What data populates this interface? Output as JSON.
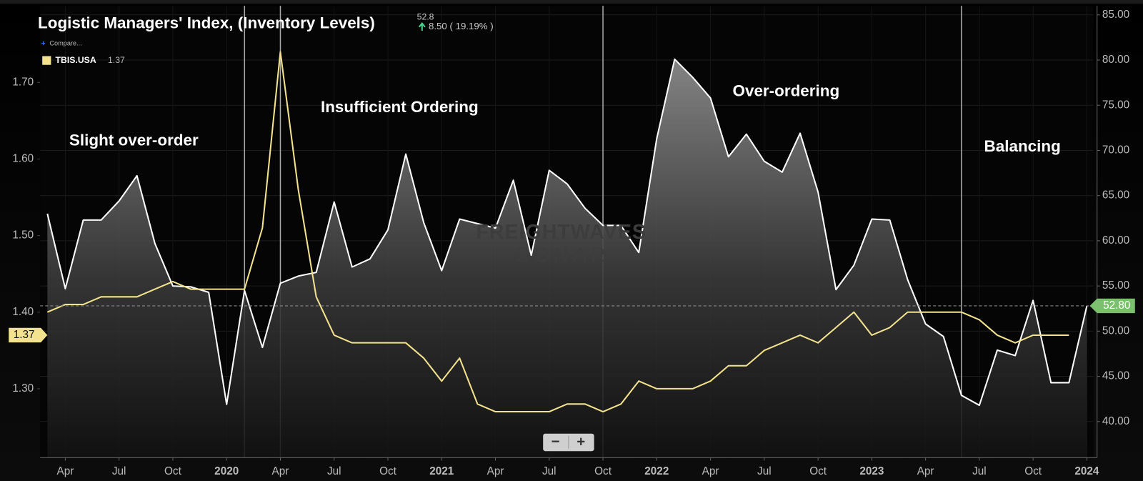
{
  "chart_data": {
    "type": "line",
    "title": "Logistic Managers' Index, (Inventory Levels)",
    "header_value": "52.8",
    "header_change": "8.50 ( 19.19% )",
    "compare": "Compare...",
    "annotations": [
      "Slight over-order",
      "Insufficient Ordering",
      "Over-ordering",
      "Balancing"
    ],
    "watermark": [
      "FREIGHTWAVES",
      "SONAR"
    ],
    "controls": [
      "−",
      "+"
    ],
    "x": [
      "2019-03",
      "2019-04",
      "2019-05",
      "2019-06",
      "2019-07",
      "2019-08",
      "2019-09",
      "2019-10",
      "2019-11",
      "2019-12",
      "2020-01",
      "2020-02",
      "2020-03",
      "2020-04",
      "2020-05",
      "2020-06",
      "2020-07",
      "2020-08",
      "2020-09",
      "2020-10",
      "2020-11",
      "2020-12",
      "2021-01",
      "2021-02",
      "2021-03",
      "2021-04",
      "2021-05",
      "2021-06",
      "2021-07",
      "2021-08",
      "2021-09",
      "2021-10",
      "2021-11",
      "2021-12",
      "2022-01",
      "2022-02",
      "2022-03",
      "2022-04",
      "2022-05",
      "2022-06",
      "2022-07",
      "2022-08",
      "2022-09",
      "2022-10",
      "2022-11",
      "2022-12",
      "2023-01",
      "2023-02",
      "2023-03",
      "2023-04",
      "2023-05",
      "2023-06",
      "2023-07",
      "2023-08",
      "2023-09",
      "2023-10",
      "2023-11",
      "2023-12",
      "2024-01"
    ],
    "xlim": [
      "2019-03",
      "2024-01"
    ],
    "xticks": [
      {
        "value": "2019-04",
        "label": "Apr"
      },
      {
        "value": "2019-07",
        "label": "Jul"
      },
      {
        "value": "2019-10",
        "label": "Oct"
      },
      {
        "value": "2020-01",
        "label": "2020"
      },
      {
        "value": "2020-04",
        "label": "Apr"
      },
      {
        "value": "2020-07",
        "label": "Jul"
      },
      {
        "value": "2020-10",
        "label": "Oct"
      },
      {
        "value": "2021-01",
        "label": "2021"
      },
      {
        "value": "2021-04",
        "label": "Apr"
      },
      {
        "value": "2021-07",
        "label": "Jul"
      },
      {
        "value": "2021-10",
        "label": "Oct"
      },
      {
        "value": "2022-01",
        "label": "2022"
      },
      {
        "value": "2022-04",
        "label": "Apr"
      },
      {
        "value": "2022-07",
        "label": "Jul"
      },
      {
        "value": "2022-10",
        "label": "Oct"
      },
      {
        "value": "2023-01",
        "label": "2023"
      },
      {
        "value": "2023-04",
        "label": "Apr"
      },
      {
        "value": "2023-07",
        "label": "Jul"
      },
      {
        "value": "2023-10",
        "label": "Oct"
      },
      {
        "value": "2024-01",
        "label": "2024"
      }
    ],
    "vlines": [
      "2020-02",
      "2020-04",
      "2021-10",
      "2023-06"
    ],
    "ylim": [
      1.21,
      1.8
    ],
    "yticks": [
      {
        "value": 1.3,
        "label": "1.30"
      },
      {
        "value": 1.4,
        "label": "1.40"
      },
      {
        "value": 1.5,
        "label": "1.50"
      },
      {
        "value": 1.6,
        "label": "1.60"
      },
      {
        "value": 1.7,
        "label": "1.70"
      }
    ],
    "y2lim": [
      36,
      86
    ],
    "y2ticks": [
      {
        "value": 40,
        "label": "40.00"
      },
      {
        "value": 45,
        "label": "45.00"
      },
      {
        "value": 50,
        "label": "50.00"
      },
      {
        "value": 55,
        "label": "55.00"
      },
      {
        "value": 60,
        "label": "60.00"
      },
      {
        "value": 65,
        "label": "65.00"
      },
      {
        "value": 70,
        "label": "70.00"
      },
      {
        "value": 75,
        "label": "75.00"
      },
      {
        "value": 80,
        "label": "80.00"
      },
      {
        "value": 85,
        "label": "85.00"
      }
    ],
    "grid": true,
    "series": [
      {
        "color": "#ffffff",
        "axis": "y2",
        "area": true,
        "last_label": "52.80",
        "tag_color": "#7cbf6e",
        "values": [
          63.0,
          54.7,
          62.3,
          62.3,
          64.4,
          67.2,
          59.7,
          55.0,
          54.9,
          54.3,
          41.9,
          54.5,
          48.2,
          55.3,
          56.1,
          56.5,
          64.3,
          57.1,
          58.0,
          61.2,
          69.6,
          62.0,
          56.7,
          62.4,
          61.9,
          61.4,
          66.7,
          58.4,
          67.8,
          66.3,
          63.6,
          61.7,
          61.7,
          58.7,
          71.3,
          80.1,
          78.1,
          75.8,
          69.3,
          71.8,
          68.8,
          67.6,
          71.9,
          65.4,
          54.6,
          57.3,
          62.4,
          62.3,
          55.7,
          50.8,
          49.4,
          42.9,
          41.8,
          47.9,
          47.3,
          53.4,
          44.3,
          44.3,
          52.8
        ]
      },
      {
        "name": "TBIS.USA",
        "color": "#f3e38e",
        "axis": "y",
        "last_label": "1.37",
        "tag_color": "#f3e38e",
        "values": [
          1.4,
          1.41,
          1.41,
          1.42,
          1.42,
          1.42,
          1.43,
          1.44,
          1.43,
          1.43,
          1.43,
          1.43,
          1.51,
          1.74,
          1.56,
          1.42,
          1.37,
          1.36,
          1.36,
          1.36,
          1.36,
          1.34,
          1.31,
          1.34,
          1.28,
          1.27,
          1.27,
          1.27,
          1.27,
          1.28,
          1.28,
          1.27,
          1.28,
          1.31,
          1.3,
          1.3,
          1.3,
          1.31,
          1.33,
          1.33,
          1.35,
          1.36,
          1.37,
          1.36,
          1.38,
          1.4,
          1.37,
          1.38,
          1.4,
          1.4,
          1.4,
          1.4,
          1.39,
          1.37,
          1.36,
          1.37,
          1.37,
          1.37,
          null
        ]
      }
    ]
  }
}
